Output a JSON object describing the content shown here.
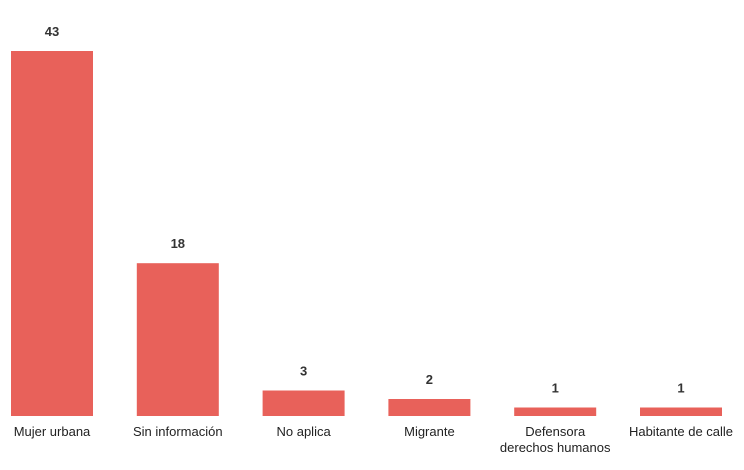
{
  "chart_data": {
    "type": "bar",
    "categories": [
      [
        "Mujer urbana"
      ],
      [
        "Sin información"
      ],
      [
        "No aplica"
      ],
      [
        "Migrante"
      ],
      [
        "Defensora",
        "derechos humanos"
      ],
      [
        "Habitante de calle"
      ]
    ],
    "values": [
      43,
      18,
      3,
      2,
      1,
      1
    ],
    "value_labels": [
      "43",
      "18",
      "3",
      "2",
      "1",
      "1"
    ],
    "bar_color": "#E8615A",
    "grid": false,
    "legend": "none"
  }
}
